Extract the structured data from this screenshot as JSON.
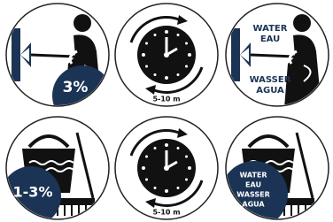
{
  "panels": [
    {
      "label": "3%"
    },
    {
      "label": "5-10 m"
    },
    {
      "labels": [
        "WATER",
        "EAU",
        "WASSER",
        "AGUA"
      ]
    },
    {
      "label": "1-3%"
    },
    {
      "label": "5-10 m"
    },
    {
      "labels": [
        "WATER",
        "EAU",
        "WASSER",
        "AGUA"
      ]
    }
  ]
}
